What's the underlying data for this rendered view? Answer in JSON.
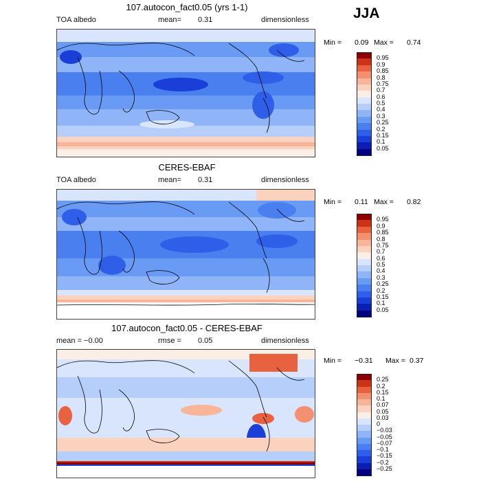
{
  "season": "JJA",
  "panels": [
    {
      "title": "107.autocon_fact0.05 (yrs 1-1)",
      "left_label": "TOA albedo",
      "mean_label": "mean=",
      "mean_value": "0.31",
      "right_label": "dimensionless",
      "min_label": "Min =",
      "min_value": "0.09",
      "max_label": "Max =",
      "max_value": "0.74",
      "colorbar_labels": [
        "0.95",
        "0.9",
        "0.85",
        "0.8",
        "0.75",
        "0.7",
        "0.6",
        "0.5",
        "0.4",
        "0.3",
        "0.25",
        "0.2",
        "0.15",
        "0.1",
        "0.05"
      ]
    },
    {
      "title": "CERES-EBAF",
      "left_label": "TOA albedo",
      "mean_label": "mean=",
      "mean_value": "0.31",
      "right_label": "dimensionless",
      "min_label": "Min =",
      "min_value": "0.11",
      "max_label": "Max =",
      "max_value": "0.82",
      "colorbar_labels": [
        "0.95",
        "0.9",
        "0.85",
        "0.8",
        "0.75",
        "0.7",
        "0.6",
        "0.5",
        "0.4",
        "0.3",
        "0.25",
        "0.2",
        "0.15",
        "0.1",
        "0.05"
      ]
    },
    {
      "title": "107.autocon_fact0.05 - CERES-EBAF",
      "left_label": "mean = −0.00",
      "mean_label": "rmse =",
      "mean_value": "0.05",
      "right_label": "dimensionless",
      "min_label": "Min =",
      "min_value": "−0.31",
      "max_label": "Max =",
      "max_value": "0.37",
      "colorbar_labels": [
        "0.25",
        "0.2",
        "0.15",
        "0.1",
        "0.07",
        "0.05",
        "0.03",
        "0",
        "−0.03",
        "−0.05",
        "−0.07",
        "−0.1",
        "−0.15",
        "−0.2",
        "−0.25"
      ]
    }
  ],
  "colors": {
    "abs_scale": [
      "#00007f",
      "#0a1fb0",
      "#1a3fd8",
      "#2f5fe8",
      "#4a7ff0",
      "#6a9bf4",
      "#8fb5f8",
      "#b5cffa",
      "#d8e5fc",
      "#fbeee4",
      "#fad2bd",
      "#f8b59a",
      "#f3906f",
      "#e8623f",
      "#cc3315",
      "#8b0000"
    ],
    "diff_scale": [
      "#00007f",
      "#0a1fb0",
      "#1a3fd8",
      "#2f5fe8",
      "#4a7ff0",
      "#6a9bf4",
      "#8fb5f8",
      "#b5cffa",
      "#d8e5fc",
      "#fbeee4",
      "#fad2bd",
      "#f8b59a",
      "#f3906f",
      "#e8623f",
      "#cc3315",
      "#8b0000"
    ],
    "coast": "#000000"
  }
}
